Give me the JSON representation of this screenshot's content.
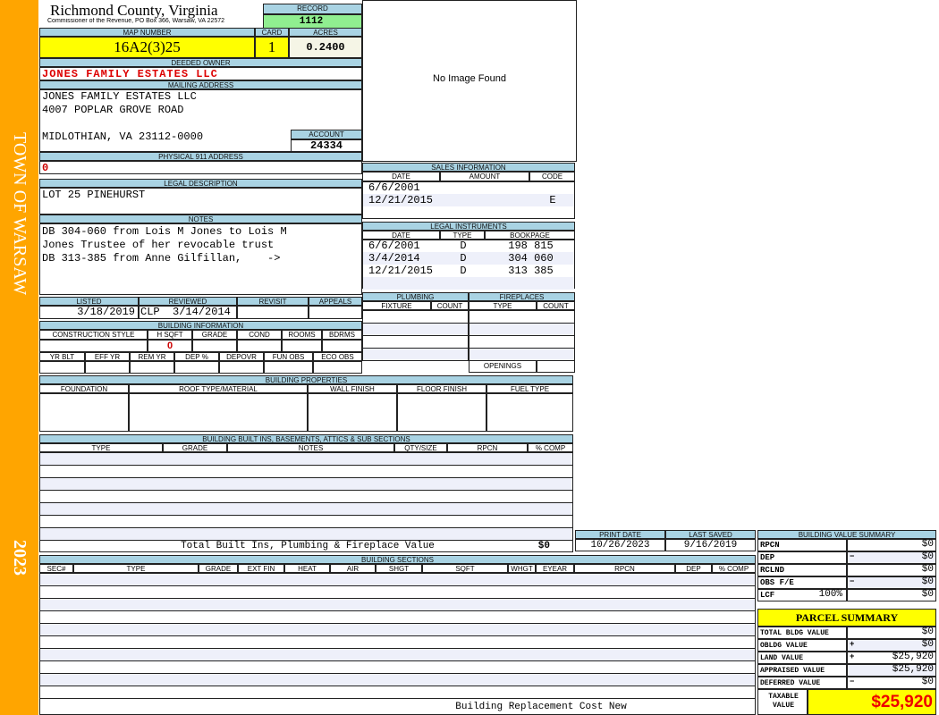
{
  "sidebar": {
    "town": "TOWN OF WARSAW",
    "year": "2023",
    "color": "#FFA500"
  },
  "header": {
    "title": "Richmond County, Virginia",
    "subtitle": "Commissioner of the Revenue, PO Box 366, Warsaw, VA 22572",
    "record_label": "RECORD",
    "record": "1112"
  },
  "parcel": {
    "map_label": "MAP NUMBER",
    "map": "16A2(3)25",
    "card_label": "CARD",
    "card": "1",
    "acres_label": "ACRES",
    "acres": "0.2400"
  },
  "owner": {
    "label": "DEEDED OWNER",
    "name": "JONES FAMILY ESTATES LLC"
  },
  "mailing": {
    "label": "MAILING ADDRESS",
    "line1": "JONES FAMILY ESTATES LLC",
    "line2": "4007 POPLAR GROVE ROAD",
    "line3": "MIDLOTHIAN, VA 23112-0000",
    "account_label": "ACCOUNT",
    "account": "24334"
  },
  "physical": {
    "label": "PHYSICAL 911 ADDRESS",
    "value": "0"
  },
  "image": {
    "text": "No Image Found"
  },
  "legal": {
    "label": "LEGAL DESCRIPTION",
    "value": "LOT 25 PINEHURST"
  },
  "notes": {
    "label": "NOTES",
    "lines": [
      "DB 304-060 from Lois M Jones to Lois M",
      "Jones Trustee of her revocable trust",
      "DB 313-385 from Anne Gilfillan,    ->"
    ]
  },
  "review": {
    "headers": [
      "LISTED",
      "REVIEWED",
      "REVISIT",
      "APPEALS"
    ],
    "listed": "3/18/2019",
    "reviewed": "CLP  3/14/2014"
  },
  "building_info": {
    "label": "BUILDING INFORMATION",
    "headers1": [
      "CONSTRUCTION STYLE",
      "H SQFT",
      "GRADE",
      "COND",
      "ROOMS",
      "BDRMS"
    ],
    "hsqft": "0",
    "headers2": [
      "YR BLT",
      "EFF YR",
      "REM YR",
      "DEP %",
      "DEPOVR",
      "FUN OBS",
      "ECO OBS"
    ]
  },
  "sales": {
    "label": "SALES INFORMATION",
    "headers": [
      "DATE",
      "AMOUNT",
      "CODE"
    ],
    "rows": [
      [
        "6/6/2001",
        "",
        ""
      ],
      [
        "12/21/2015",
        "",
        "E"
      ]
    ]
  },
  "instruments": {
    "label": "LEGAL INSTRUMENTS",
    "headers": [
      "DATE",
      "TYPE",
      "BOOKPAGE"
    ],
    "rows": [
      [
        "6/6/2001",
        "D",
        "198 815"
      ],
      [
        "3/4/2014",
        "D",
        "304 060"
      ],
      [
        "12/21/2015",
        "D",
        "313 385"
      ]
    ]
  },
  "plumbing": {
    "label": "PLUMBING",
    "headers": [
      "FIXTURE",
      "COUNT"
    ]
  },
  "fireplaces": {
    "label": "FIREPLACES",
    "headers": [
      "TYPE",
      "COUNT"
    ],
    "openings": "OPENINGS"
  },
  "properties": {
    "label": "BUILDING PROPERTIES",
    "headers": [
      "FOUNDATION",
      "ROOF TYPE/MATERIAL",
      "WALL FINISH",
      "FLOOR FINISH",
      "FUEL TYPE"
    ]
  },
  "builtins": {
    "label": "BUILDING BUILT INS, BASEMENTS, ATTICS & SUB SECTIONS",
    "headers": [
      "TYPE",
      "GRADE",
      "NOTES",
      "QTY/SIZE",
      "RPCN",
      "% COMP"
    ],
    "total_label": "Total Built Ins, Plumbing & Fireplace Value",
    "total": "$0"
  },
  "dates": {
    "print_label": "PRINT DATE",
    "print": "10/26/2023",
    "saved_label": "LAST SAVED",
    "saved": "9/16/2019"
  },
  "sections": {
    "label": "BUILDING SECTIONS",
    "headers": [
      "SEC#",
      "TYPE",
      "GRADE",
      "EXT FIN",
      "HEAT",
      "AIR",
      "SHGT",
      "SQFT",
      "WHGT",
      "EYEAR",
      "RPCN",
      "DEP",
      "% COMP"
    ],
    "footer": "Building Replacement Cost New"
  },
  "value_summary": {
    "label": "BUILDING VALUE SUMMARY",
    "rows": [
      {
        "name": "RPCN",
        "op": "",
        "value": "$0"
      },
      {
        "name": "DEP",
        "op": "−",
        "value": "$0"
      },
      {
        "name": "RCLND",
        "op": "",
        "value": "$0"
      },
      {
        "name": "OBS F/E",
        "op": "−",
        "value": "$0"
      },
      {
        "name": "LCF",
        "pct": "100%",
        "op": "",
        "value": "$0"
      }
    ]
  },
  "parcel_summary": {
    "title": "PARCEL SUMMARY",
    "rows": [
      {
        "name": "TOTAL BLDG VALUE",
        "op": "",
        "value": "$0"
      },
      {
        "name": "OBLDG VALUE",
        "op": "+",
        "value": "$0"
      },
      {
        "name": "LAND VALUE",
        "op": "+",
        "value": "$25,920"
      },
      {
        "name": "APPRAISED VALUE",
        "op": "",
        "value": "$25,920"
      },
      {
        "name": "DEFERRED VALUE",
        "op": "−",
        "value": "$0"
      }
    ],
    "taxable_label": "TAXABLE VALUE",
    "taxable": "$25,920"
  }
}
